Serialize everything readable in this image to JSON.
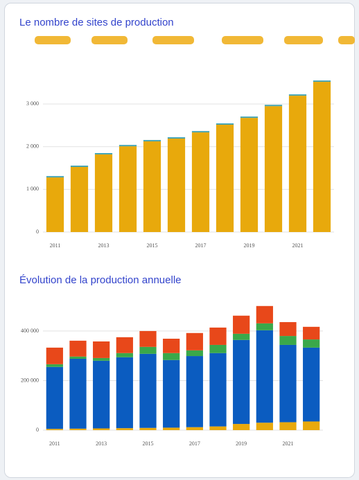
{
  "chart_data": [
    {
      "type": "bar",
      "stacked": true,
      "title": "Le nombre de sites de production",
      "categories": [
        "2011",
        null,
        "2013",
        null,
        "2015",
        null,
        "2017",
        null,
        "2019",
        null,
        "2021",
        null
      ],
      "series": [
        {
          "color": "#e8a90c",
          "values": [
            1280,
            1525,
            1820,
            2010,
            2125,
            2190,
            2335,
            2515,
            2675,
            2950,
            3195,
            3520
          ]
        },
        {
          "color": "#3aa0b0",
          "values": [
            30,
            30,
            30,
            30,
            30,
            30,
            30,
            30,
            30,
            30,
            30,
            30
          ]
        }
      ],
      "ylim": [
        0,
        3700
      ],
      "yticks": [
        0,
        {
          "value": 1000,
          "label": "1 000"
        },
        {
          "value": 2000,
          "label": "2 000"
        },
        {
          "value": 3000,
          "label": "3 000"
        }
      ],
      "grid": true
    },
    {
      "type": "bar",
      "stacked": true,
      "title": "Évolution de la production annuelle",
      "categories": [
        "2011",
        null,
        "2013",
        null,
        "2015",
        null,
        "2017",
        null,
        "2019",
        null,
        "2021",
        null
      ],
      "series": [
        {
          "color": "#e8a90c",
          "values": [
            5000,
            6000,
            7000,
            8000,
            9000,
            10000,
            12000,
            15000,
            25000,
            30000,
            32000,
            35000
          ]
        },
        {
          "color": "#0b5cc0",
          "values": [
            250000,
            282000,
            273000,
            286000,
            299000,
            273000,
            287000,
            296000,
            339000,
            373000,
            312000,
            298000
          ]
        },
        {
          "color": "#3aa84a",
          "values": [
            11000,
            9000,
            11000,
            17000,
            28000,
            28000,
            23000,
            33000,
            25000,
            28000,
            36000,
            33000
          ]
        },
        {
          "color": "#e8481a",
          "values": [
            67000,
            64000,
            67000,
            64000,
            64000,
            58000,
            70000,
            70000,
            73000,
            70000,
            56000,
            51000
          ]
        }
      ],
      "ylim": [
        0,
        520000
      ],
      "yticks": [
        0,
        {
          "value": 200000,
          "label": "200 000"
        },
        {
          "value": 400000,
          "label": "400 000"
        }
      ],
      "grid": true
    }
  ]
}
